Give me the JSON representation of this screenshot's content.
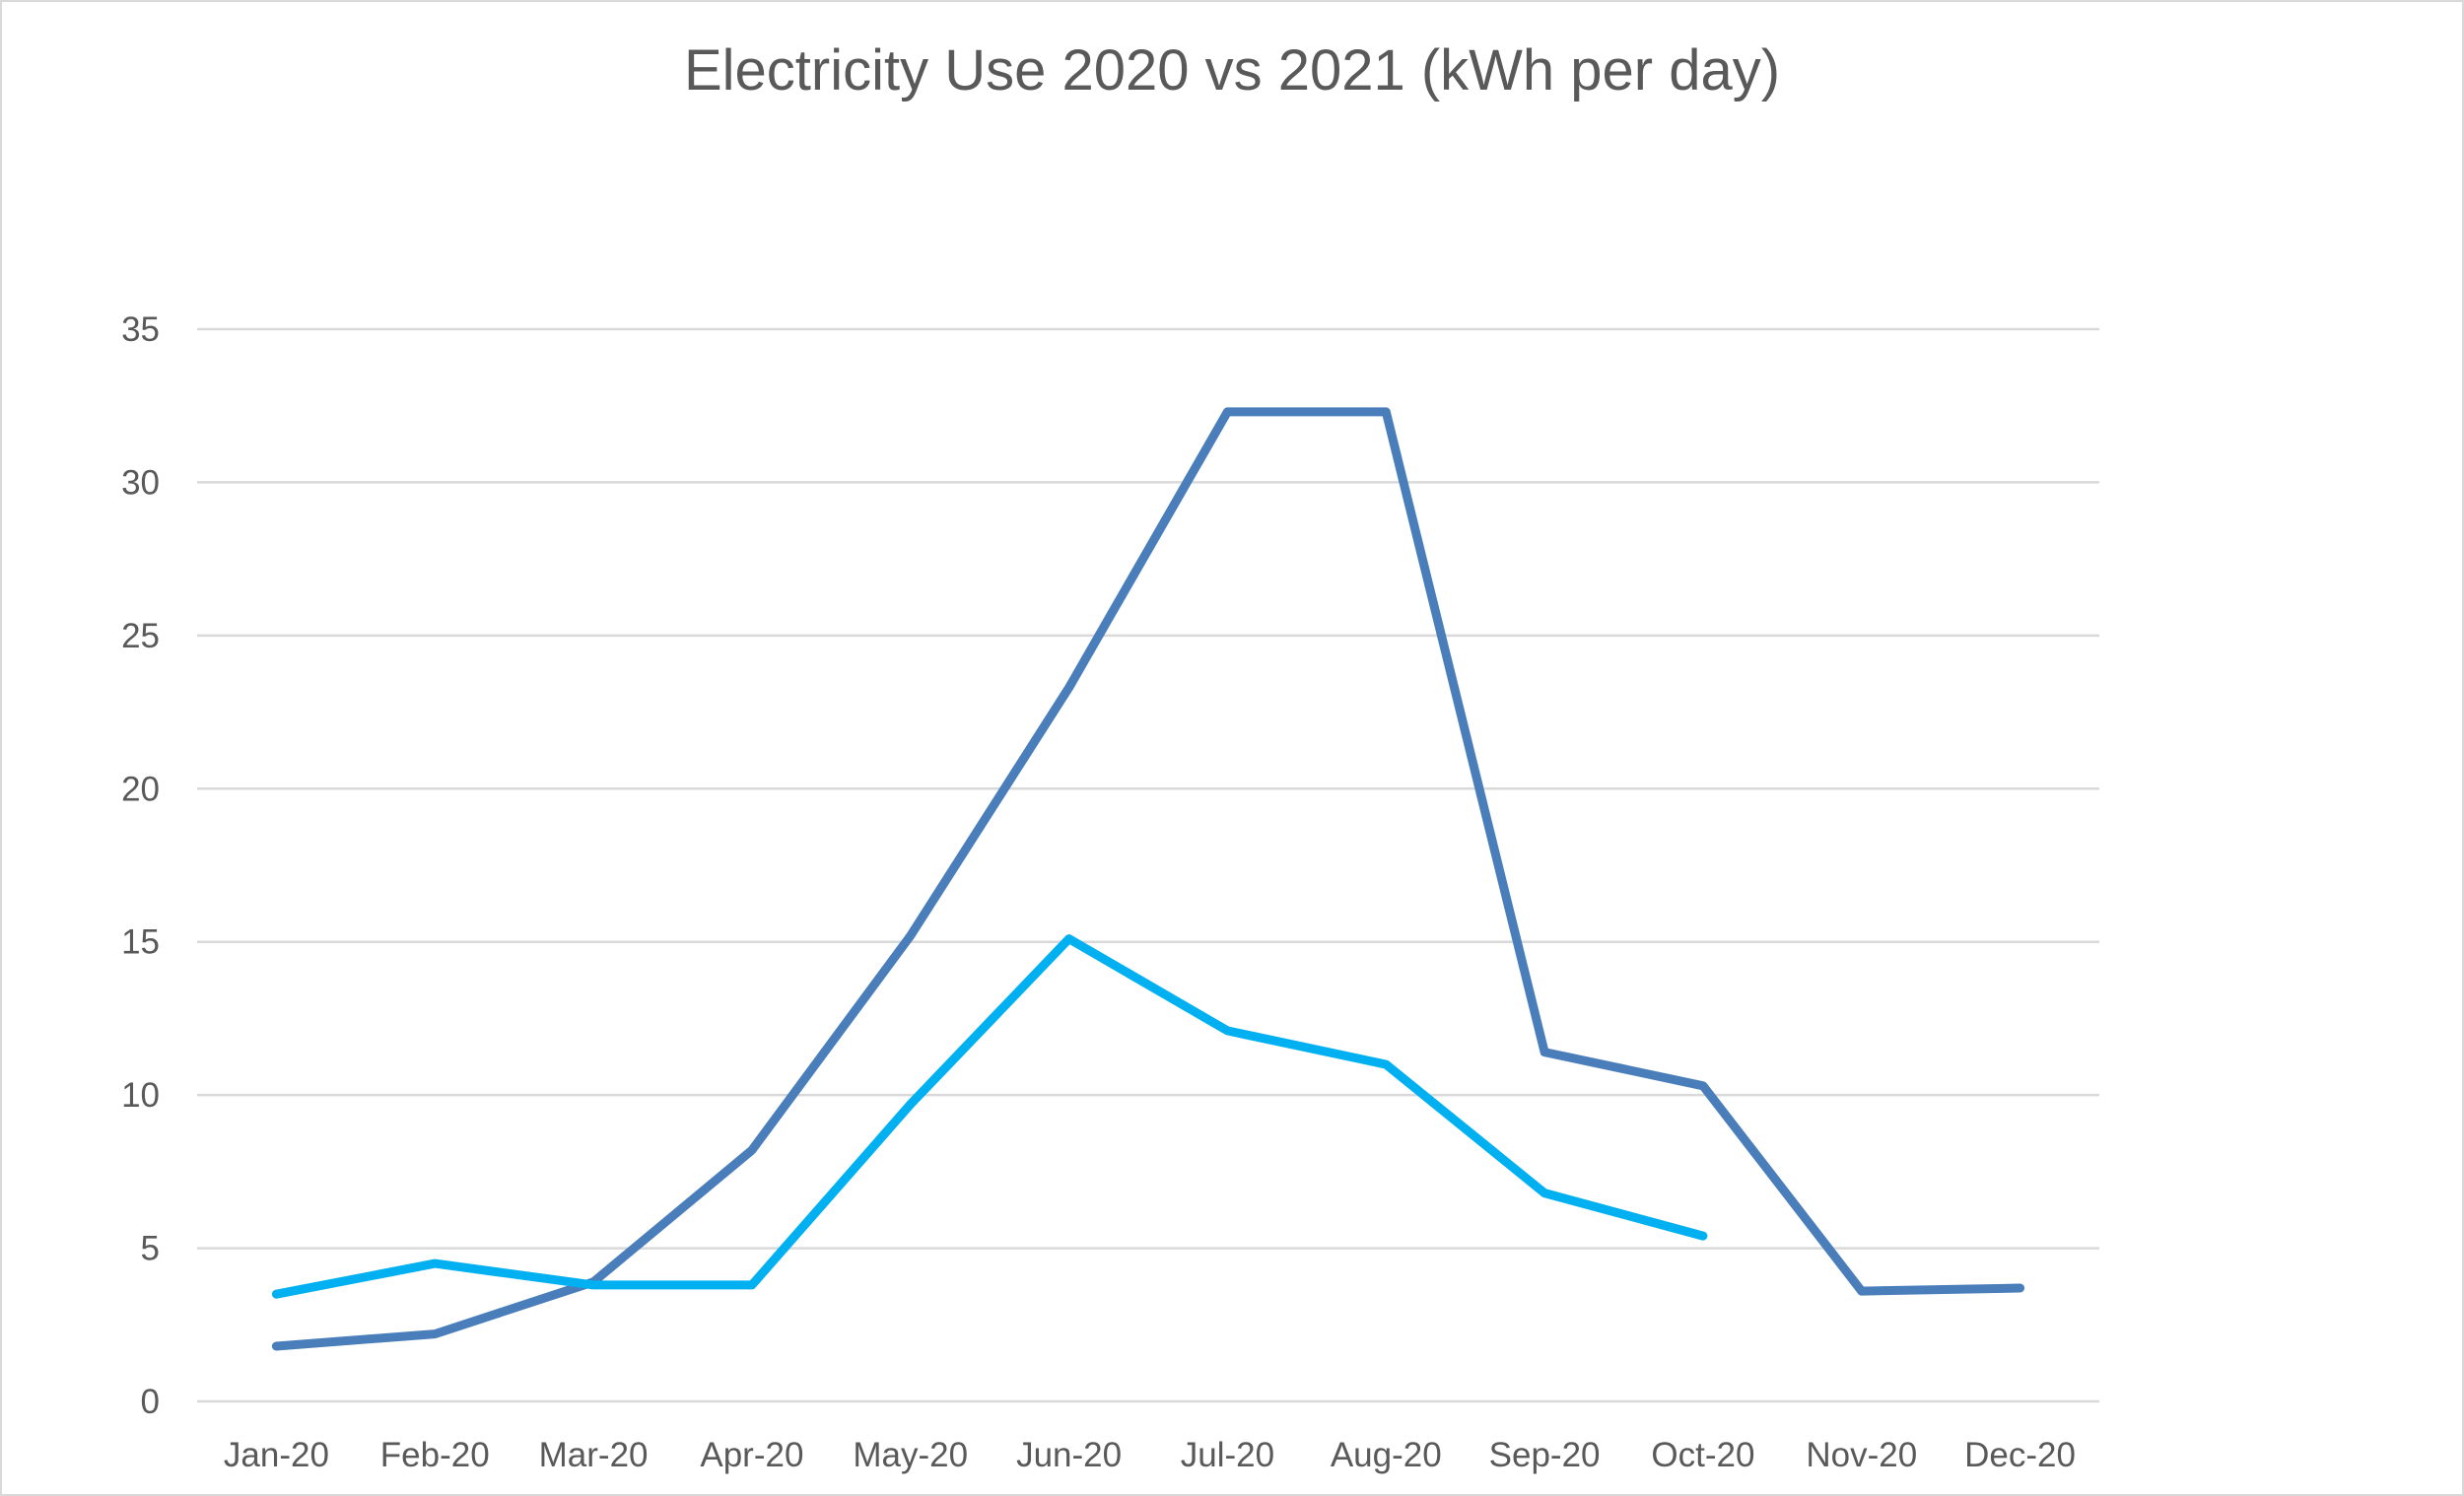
{
  "chart_data": {
    "type": "line",
    "title": "Electricity Use 2020 vs 2021 (kWh per day)",
    "xlabel": "",
    "ylabel": "",
    "categories": [
      "Jan-20",
      "Feb-20",
      "Mar-20",
      "Apr-20",
      "May-20",
      "Jun-20",
      "Jul-20",
      "Aug-20",
      "Sep-20",
      "Oct-20",
      "Nov-20",
      "Dec-20"
    ],
    "ylim": [
      0,
      35
    ],
    "yticks": [
      0,
      5,
      10,
      15,
      20,
      25,
      30,
      35
    ],
    "grid": true,
    "legend": "none",
    "series": [
      {
        "color": "#4a7ebb",
        "values": [
          1.8,
          2.2,
          3.9,
          8.2,
          15.2,
          23.3,
          32.3,
          32.3,
          11.4,
          10.3,
          3.6,
          3.7
        ]
      },
      {
        "color": "#00b0f0",
        "values": [
          3.5,
          4.5,
          3.8,
          3.8,
          9.7,
          15.1,
          12.1,
          11.0,
          6.8,
          5.4,
          null,
          null
        ]
      }
    ]
  }
}
